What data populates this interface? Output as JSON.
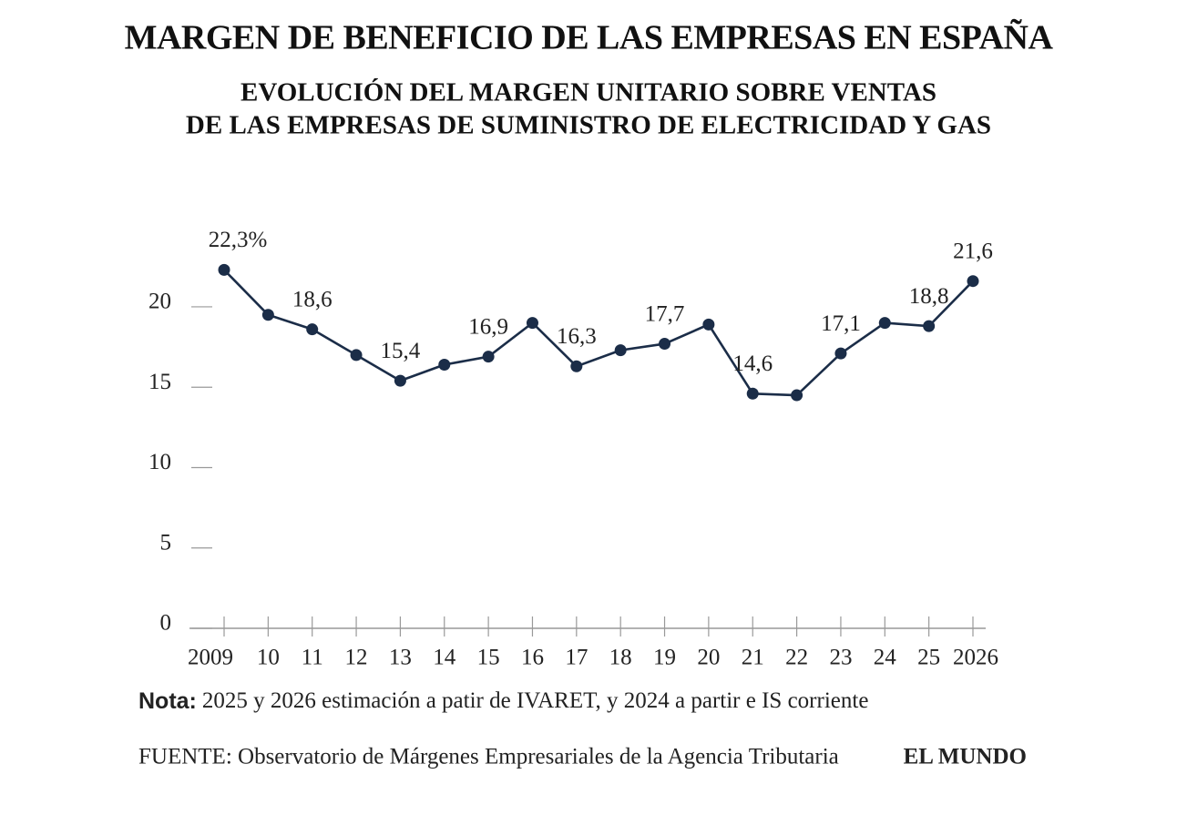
{
  "chart_data": {
    "type": "line",
    "title": "MARGEN DE BENEFICIO DE LAS EMPRESAS EN ESPAÑA",
    "subtitle": [
      "EVOLUCIÓN DEL MARGEN UNITARIO SOBRE VENTAS",
      "DE LAS EMPRESAS DE SUMINISTRO DE ELECTRICIDAD Y GAS"
    ],
    "categories": [
      "2009",
      "10",
      "11",
      "12",
      "13",
      "14",
      "15",
      "16",
      "17",
      "18",
      "19",
      "20",
      "21",
      "22",
      "23",
      "24",
      "25",
      "2026"
    ],
    "series": [
      {
        "name": "Margen unitario sobre ventas",
        "color": "#1b2d48",
        "values": [
          22.3,
          19.5,
          18.6,
          17.0,
          15.4,
          16.4,
          16.9,
          19.0,
          16.3,
          17.3,
          17.7,
          18.9,
          14.6,
          14.5,
          17.1,
          19.0,
          18.8,
          21.6
        ],
        "value_labels": [
          "22,3%",
          null,
          "18,6",
          null,
          "15,4",
          null,
          "16,9",
          null,
          "16,3",
          null,
          "17,7",
          null,
          "14,6",
          null,
          "17,1",
          null,
          "18,8",
          "21,6"
        ]
      }
    ],
    "ylim": [
      0,
      23
    ],
    "yticks": [
      0,
      5,
      10,
      15,
      20
    ],
    "note_label": "Nota:",
    "note": "2025 y 2026 estimación a patir de IVARET, y 2024 a partir e IS corriente",
    "source": "FUENTE: Observatorio de Márgenes Empresariales de la Agencia Tributaria",
    "brand": "EL MUNDO"
  }
}
